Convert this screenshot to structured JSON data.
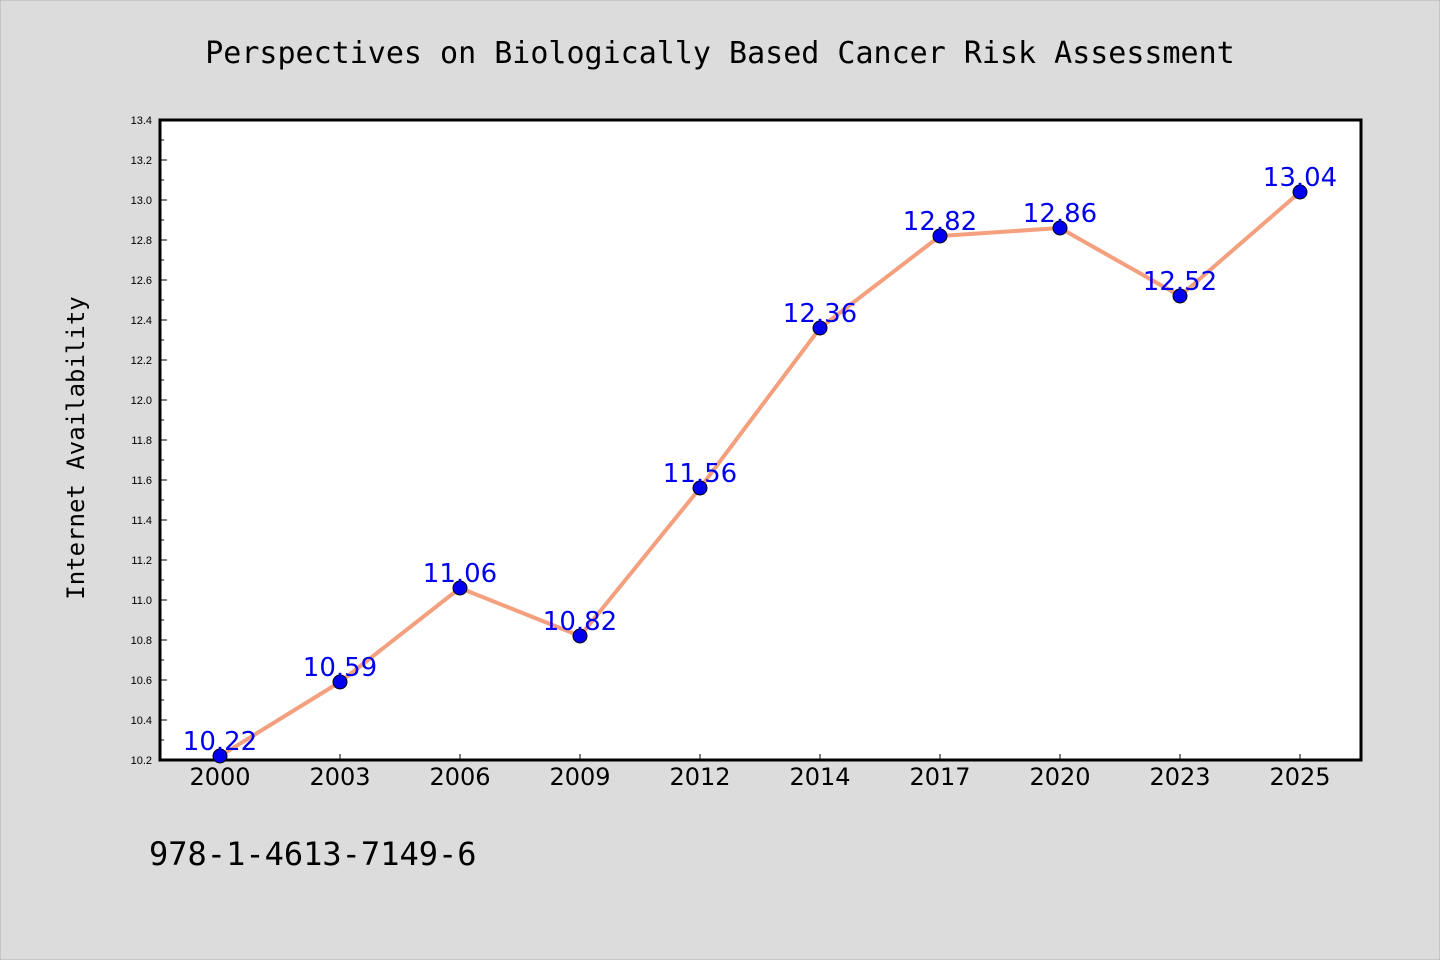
{
  "chart_data": {
    "type": "line",
    "title": "Perspectives on Biologically Based Cancer Risk Assessment",
    "xlabel": "",
    "ylabel": "Internet Availability",
    "categories": [
      "2000",
      "2003",
      "2006",
      "2009",
      "2012",
      "2014",
      "2017",
      "2020",
      "2023",
      "2025"
    ],
    "series": [
      {
        "values": [
          10.22,
          10.59,
          11.06,
          10.82,
          11.56,
          12.36,
          12.82,
          12.86,
          12.52,
          13.04
        ]
      }
    ],
    "data_labels": [
      "10.22",
      "10.59",
      "11.06",
      "10.82",
      "11.56",
      "12.36",
      "12.82",
      "12.86",
      "12.52",
      "13.04"
    ],
    "ylim": [
      10.2,
      13.4
    ],
    "yticks": [
      "10.2",
      "10.4",
      "10.6",
      "10.8",
      "11.0",
      "11.2",
      "11.4",
      "11.6",
      "11.8",
      "12.0",
      "12.2",
      "12.4",
      "12.6",
      "12.8",
      "13.0",
      "13.2",
      "13.4"
    ],
    "grid": false,
    "legend": "none",
    "colors": {
      "line": "#f4a07e",
      "marker": "#0000ee",
      "marker_edge": "#000000",
      "data_label": "#0000ee",
      "background": "#dcdcdc",
      "plot_background": "#ffffff"
    }
  },
  "footer": {
    "isbn": "978-1-4613-7149-6"
  }
}
